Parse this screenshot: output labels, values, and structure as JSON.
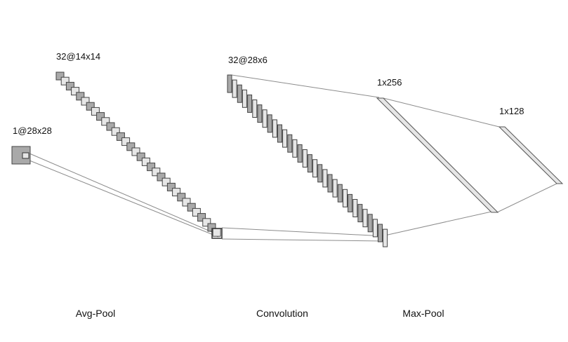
{
  "layers": [
    {
      "id": "input",
      "label": "1@28x28",
      "maps": 1
    },
    {
      "id": "pool1",
      "label": "32@14x14",
      "maps": 32
    },
    {
      "id": "conv",
      "label": "32@28x6",
      "maps": 32
    },
    {
      "id": "dense1",
      "label": "1x256",
      "maps": 1
    },
    {
      "id": "dense2",
      "label": "1x128",
      "maps": 1
    }
  ],
  "operations": [
    "Avg-Pool",
    "Convolution",
    "Max-Pool"
  ],
  "colors": {
    "dark_fill": "#a9a9a9",
    "light_fill": "#e6e6e6",
    "box_stroke": "#444444",
    "connector": "#8c8c8c"
  }
}
